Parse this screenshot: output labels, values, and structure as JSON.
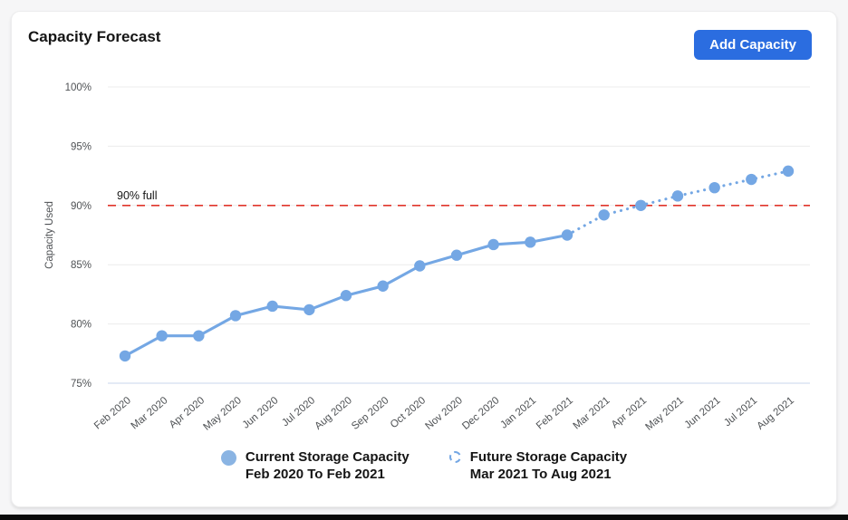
{
  "card": {
    "title": "Capacity Forecast",
    "button_label": "Add Capacity"
  },
  "colors": {
    "accent_blue": "#2b6de0",
    "series_blue": "#74a7e4",
    "legend_fill_blue": "#8ab4e3",
    "threshold_red": "#e0352b",
    "grid_gray": "#ececec",
    "baseline_blue": "#c9d5ee",
    "text_dark": "#151515",
    "tick_gray": "#4f5255"
  },
  "chart_data": {
    "type": "line",
    "title": "Capacity Forecast",
    "xlabel": "",
    "ylabel": "Capacity Used",
    "ylim": [
      75,
      100
    ],
    "yticks": [
      75,
      80,
      85,
      90,
      95,
      100
    ],
    "ytick_labels": [
      "75%",
      "80%",
      "85%",
      "90%",
      "95%",
      "100%"
    ],
    "grid": true,
    "legend_position": "bottom",
    "categories": [
      "Feb 2020",
      "Mar 2020",
      "Apr 2020",
      "May 2020",
      "Jun 2020",
      "Jul 2020",
      "Aug 2020",
      "Sep 2020",
      "Oct 2020",
      "Nov 2020",
      "Dec 2020",
      "Jan 2021",
      "Feb 2021",
      "Mar 2021",
      "Apr 2021",
      "May 2021",
      "Jun 2021",
      "Jul 2021",
      "Aug 2021"
    ],
    "threshold": {
      "value": 90,
      "label": "90% full"
    },
    "series": [
      {
        "name": "Current Storage Capacity",
        "period": "Feb 2020 To Feb 2021",
        "style": "solid",
        "start_index": 0,
        "values": [
          77.3,
          79.0,
          79.0,
          80.7,
          81.5,
          81.2,
          82.4,
          83.2,
          84.9,
          85.8,
          86.7,
          86.9,
          87.5
        ]
      },
      {
        "name": "Future Storage Capacity",
        "period": "Mar 2021 To Aug 2021",
        "style": "dotted",
        "start_index": 12,
        "values": [
          87.5,
          89.2,
          90.0,
          90.8,
          91.5,
          92.2,
          92.9
        ]
      }
    ]
  }
}
